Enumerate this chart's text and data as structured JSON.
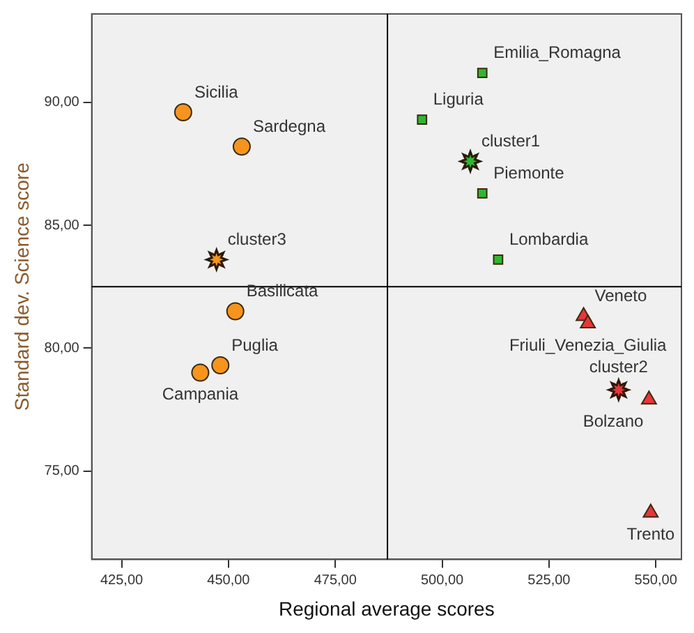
{
  "chart_data": {
    "type": "scatter",
    "xlabel": "Regional average scores",
    "ylabel": "Standard dev. Science score",
    "xlim": [
      418,
      556
    ],
    "ylim": [
      71.4,
      93.6
    ],
    "xticks": [
      {
        "value": 425,
        "label": "425,00"
      },
      {
        "value": 450,
        "label": "450,00"
      },
      {
        "value": 475,
        "label": "475,00"
      },
      {
        "value": 500,
        "label": "500,00"
      },
      {
        "value": 525,
        "label": "525,00"
      },
      {
        "value": 550,
        "label": "550,00"
      }
    ],
    "yticks": [
      {
        "value": 75,
        "label": "75,00"
      },
      {
        "value": 80,
        "label": "80,00"
      },
      {
        "value": 85,
        "label": "85,00"
      },
      {
        "value": 90,
        "label": "90,00"
      }
    ],
    "grid": false,
    "legend": false,
    "series": [
      {
        "color": "#f7941d",
        "marker": "circle",
        "x": [
          439.4,
          453.1,
          451.6,
          448.1,
          443.4
        ],
        "values": [
          89.6,
          88.2,
          81.5,
          79.3,
          79.0
        ]
      },
      {
        "color": "#2eb82e",
        "marker": "square",
        "x": [
          509.4,
          495.3,
          509.4,
          513.1
        ],
        "values": [
          91.2,
          89.3,
          86.3,
          83.6
        ]
      },
      {
        "color": "#e8363a",
        "marker": "triangle",
        "x": [
          533.1,
          534.1,
          548.4,
          548.8
        ],
        "values": [
          81.3,
          81.0,
          77.9,
          73.3
        ]
      },
      {
        "colors": [
          "#f7941d",
          "#2eb82e",
          "#e8363a"
        ],
        "marker": "star",
        "x": [
          447.2,
          506.6,
          541.3
        ],
        "values": [
          83.6,
          87.6,
          78.3
        ]
      }
    ],
    "ref_lines": [
      {
        "axis": "x",
        "value": 487.2
      },
      {
        "axis": "y",
        "value": 82.5
      }
    ],
    "annotations": [
      {
        "text": "Sicilia",
        "x": 439.4,
        "y": 89.6
      },
      {
        "text": "Sardegna",
        "x": 453.1,
        "y": 88.2
      },
      {
        "text": "Basilicata",
        "x": 451.6,
        "y": 81.5
      },
      {
        "text": "Puglia",
        "x": 448.1,
        "y": 79.3
      },
      {
        "text": "Campania",
        "x": 443.4,
        "y": 79.0
      },
      {
        "text": "Emilia_Romagna",
        "x": 509.4,
        "y": 91.2
      },
      {
        "text": "Liguria",
        "x": 495.3,
        "y": 89.3
      },
      {
        "text": "Piemonte",
        "x": 509.4,
        "y": 86.3
      },
      {
        "text": "Lombardia",
        "x": 513.1,
        "y": 83.6
      },
      {
        "text": "Veneto",
        "x": 533.1,
        "y": 81.3
      },
      {
        "text": "Friuli_Venezia_Giulia",
        "x": 534.1,
        "y": 81.0
      },
      {
        "text": "Bolzano",
        "x": 548.4,
        "y": 77.9
      },
      {
        "text": "Trento",
        "x": 548.8,
        "y": 73.3
      },
      {
        "text": "cluster3",
        "x": 447.2,
        "y": 83.6
      },
      {
        "text": "cluster1",
        "x": 506.6,
        "y": 87.6
      },
      {
        "text": "cluster2",
        "x": 541.3,
        "y": 78.3
      }
    ]
  }
}
